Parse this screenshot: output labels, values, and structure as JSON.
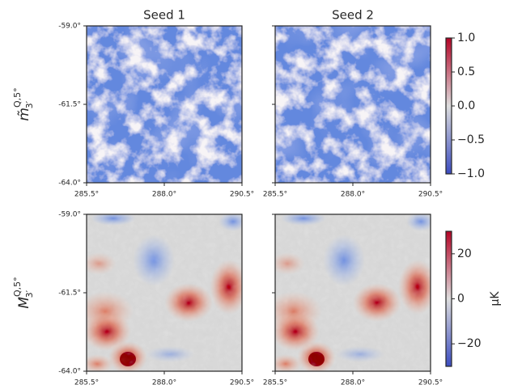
{
  "chart_data": [
    {
      "type": "heatmap",
      "title": "Seed 1",
      "ylabel": {
        "base": "m̃",
        "sub": "3′",
        "sup": "Q,5°"
      },
      "xlim": [
        285.5,
        290.5
      ],
      "xticks": [
        {
          "value": 285.5,
          "label": "285.5°"
        },
        {
          "value": 288.0,
          "label": "288.0°"
        },
        {
          "value": 290.5,
          "label": "290.5°"
        }
      ],
      "ylim": [
        -64,
        -59
      ],
      "yticks": [
        {
          "value": -59,
          "label": "-59.0°"
        },
        {
          "value": -61.5,
          "label": "-61.5°"
        },
        {
          "value": -64,
          "label": "-64.0°"
        }
      ]
    },
    {
      "type": "heatmap",
      "title": "Seed 2",
      "xlim": [
        285.5,
        290.5
      ],
      "xticks": [
        {
          "value": 285.5,
          "label": "285.5°"
        },
        {
          "value": 288.0,
          "label": "288.0°"
        },
        {
          "value": 290.5,
          "label": "290.5°"
        }
      ],
      "ylim": [
        -64,
        -59
      ]
    },
    {
      "type": "heatmap",
      "ylabel": {
        "base": "M",
        "sub": "3′",
        "sup": "Q,5°"
      },
      "xlim": [
        285.5,
        290.5
      ],
      "xticks": [
        {
          "value": 285.5,
          "label": "285.5°"
        },
        {
          "value": 288.0,
          "label": "288.0°"
        },
        {
          "value": 290.5,
          "label": "290.5°"
        }
      ],
      "ylim": [
        -64,
        -59
      ],
      "yticks": [
        {
          "value": -59,
          "label": "-59.0°"
        },
        {
          "value": -61.5,
          "label": "-61.5°"
        },
        {
          "value": -64,
          "label": "-64.0°"
        }
      ]
    },
    {
      "type": "heatmap",
      "xlim": [
        285.5,
        290.5
      ],
      "xticks": [
        {
          "value": 285.5,
          "label": "285.5°"
        },
        {
          "value": 288.0,
          "label": "288.0°"
        },
        {
          "value": 290.5,
          "label": "290.5°"
        }
      ],
      "ylim": [
        -64,
        -59
      ]
    },
    {
      "type": "colorbar",
      "colors": [
        "#3b4cc0",
        "#dddddd",
        "#b40426"
      ],
      "ylim": [
        -1,
        1
      ],
      "yticks": [
        {
          "value": 1,
          "label": "1.0"
        },
        {
          "value": 0.5,
          "label": "0.5"
        },
        {
          "value": 0,
          "label": "0.0"
        },
        {
          "value": -0.5,
          "label": "−0.5"
        },
        {
          "value": -1,
          "label": "−1.0"
        }
      ]
    },
    {
      "type": "colorbar",
      "colors": [
        "#3b4cc0",
        "#dddddd",
        "#b40426"
      ],
      "ylim": [
        -30,
        30
      ],
      "label": "μK",
      "yticks": [
        20,
        0,
        {
          "value": -20,
          "label": "−20"
        }
      ]
    }
  ]
}
